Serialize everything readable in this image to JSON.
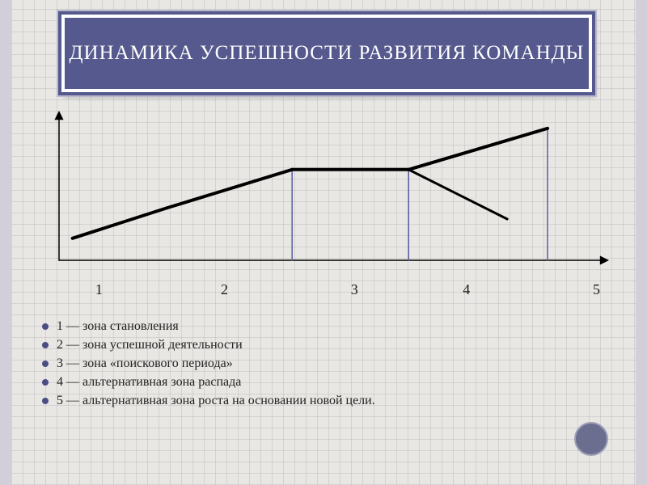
{
  "title": "ДИНАМИКА УСПЕШНОСТИ РАЗВИТИЯ КОМАНДЫ",
  "chart": {
    "type": "line",
    "background_color": "#e8e7e3",
    "grid_color": "#b9b8c0",
    "axis_color": "#000000",
    "axis_width": 1.5,
    "xlim": [
      0,
      6
    ],
    "ylim": [
      0,
      1
    ],
    "arrow_size": 8,
    "droplines": {
      "color": "#5a5da0",
      "width": 1.5,
      "x": [
        2.6,
        3.9,
        5.45
      ]
    },
    "series": [
      {
        "name": "main",
        "color": "#000000",
        "width": 4,
        "points": [
          [
            0.15,
            0.16
          ],
          [
            1.2,
            0.38
          ],
          [
            2.6,
            0.66
          ],
          [
            3.9,
            0.66
          ],
          [
            5.45,
            0.96
          ]
        ]
      },
      {
        "name": "alt-decline",
        "color": "#000000",
        "width": 3,
        "points": [
          [
            3.9,
            0.66
          ],
          [
            5.0,
            0.3
          ]
        ]
      }
    ],
    "x_ticks": [
      {
        "value": 0.45,
        "label": "1"
      },
      {
        "value": 1.85,
        "label": "2"
      },
      {
        "value": 3.3,
        "label": "3"
      },
      {
        "value": 4.55,
        "label": "4"
      },
      {
        "value": 6.0,
        "label": "5"
      }
    ],
    "tick_fontsize": 18
  },
  "legend": {
    "fontsize": 16,
    "bullet_color": "#4a4e82",
    "items": [
      "1 — зона становления",
      "2 — зона успешной деятельности",
      "3 — зона «поискового периода»",
      "4 — альтернативная зона распада",
      "5 — альтернативная зона роста на основании новой цели."
    ]
  },
  "accent_color": "#55598d"
}
